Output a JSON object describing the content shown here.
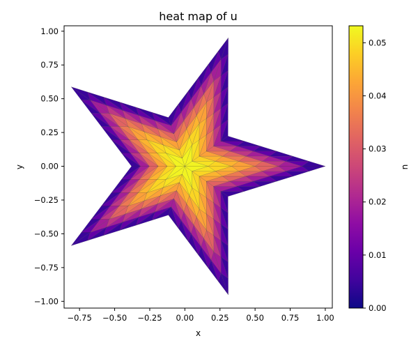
{
  "chart_data": {
    "type": "heatmap",
    "title": "heat map of u",
    "xlabel": "x",
    "ylabel": "y",
    "xlim": [
      -0.86,
      1.05
    ],
    "ylim": [
      -1.05,
      1.04
    ],
    "xticks": [
      -0.75,
      -0.5,
      -0.25,
      0.0,
      0.25,
      0.5,
      0.75,
      1.0
    ],
    "xtick_labels": [
      "−0.75",
      "−0.50",
      "−0.25",
      "0.00",
      "0.25",
      "0.50",
      "0.75",
      "1.00"
    ],
    "yticks": [
      -1.0,
      -0.75,
      -0.5,
      -0.25,
      0.0,
      0.25,
      0.5,
      0.75,
      1.0
    ],
    "ytick_labels": [
      "−1.00",
      "−0.75",
      "−0.50",
      "−0.25",
      "0.00",
      "0.25",
      "0.50",
      "0.75",
      "1.00"
    ],
    "colorbar": {
      "label": "u",
      "colormap": "plasma",
      "range": [
        0.0,
        0.0532
      ],
      "ticks": [
        0.0,
        0.01,
        0.02,
        0.03,
        0.04,
        0.05
      ],
      "tick_labels": [
        "0.00",
        "0.01",
        "0.02",
        "0.03",
        "0.04",
        "0.05"
      ]
    },
    "domain": {
      "shape": "five-pointed star",
      "outer_radius": 1.0,
      "inner_radius": 0.38,
      "first_point_angle_deg": 0,
      "boundary_value": 0.0,
      "peak_value": 0.0532,
      "peak_location": [
        0.0,
        0.0
      ]
    },
    "colormap_stops": [
      "#0d0887",
      "#41049d",
      "#6a00a8",
      "#8f0da4",
      "#b12a90",
      "#cc4778",
      "#e16462",
      "#f2844b",
      "#fca636",
      "#fcce25",
      "#f0f921"
    ],
    "mesh_edge_color": "#333333",
    "grid": false
  }
}
